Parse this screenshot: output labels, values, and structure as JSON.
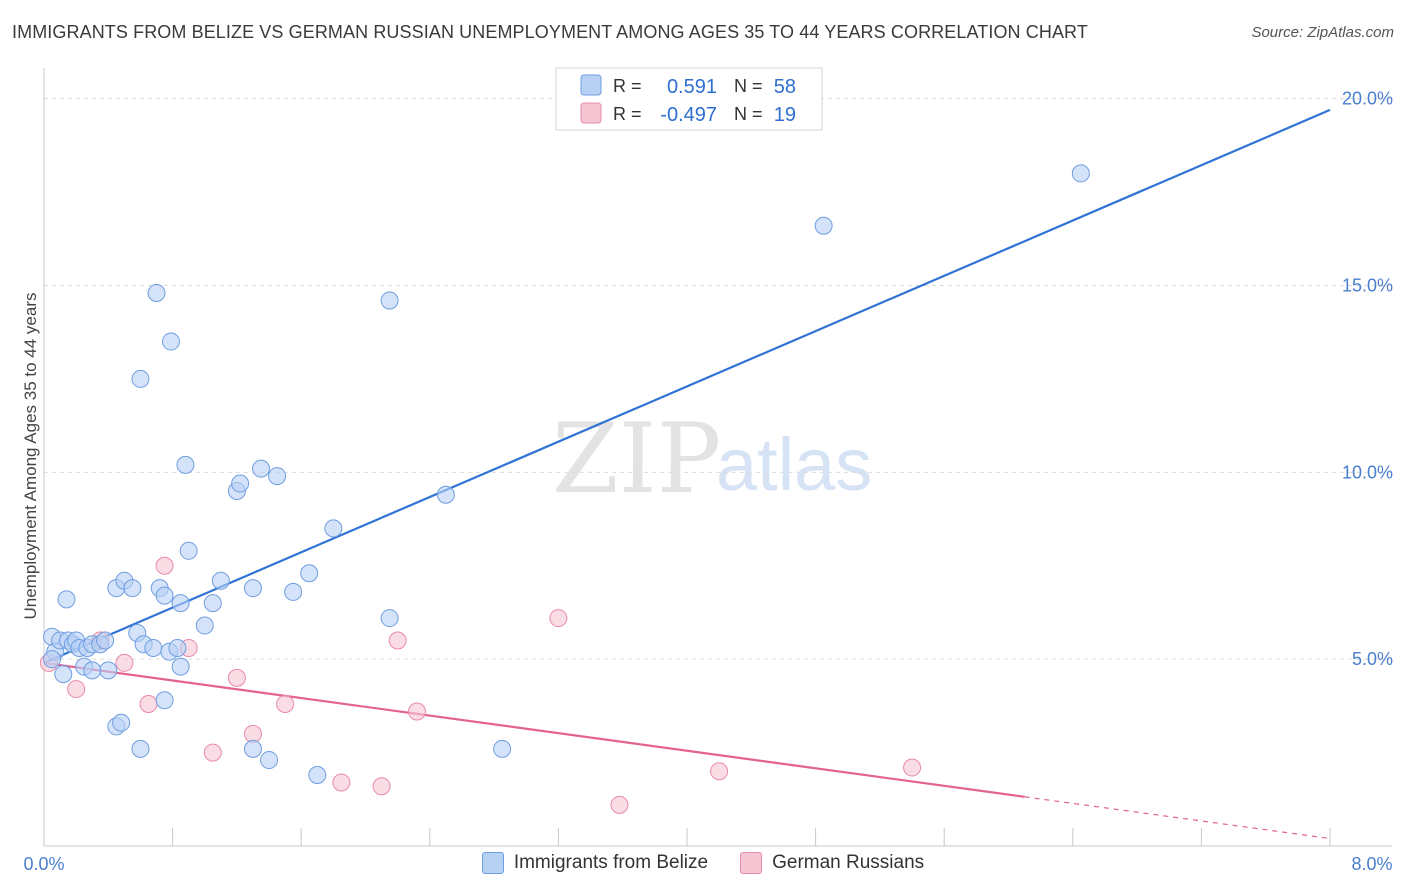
{
  "header": {
    "title": "IMMIGRANTS FROM BELIZE VS GERMAN RUSSIAN UNEMPLOYMENT AMONG AGES 35 TO 44 YEARS CORRELATION CHART",
    "source": "Source: ZipAtlas.com"
  },
  "watermark": {
    "zip": "ZIP",
    "atlas": "atlas"
  },
  "colors": {
    "blue_fill": "#b7d1f5",
    "blue_stroke": "#6f9ee0",
    "blue_line": "#2f73d4",
    "pink_fill": "#f6c5d4",
    "pink_stroke": "#e88aa8",
    "pink_line": "#e4628e",
    "tick": "#4a7fd0",
    "grid": "#dcdcdc"
  },
  "legend": {
    "r_label": "R =",
    "n_label": "N =",
    "entries": [
      {
        "r": "0.591",
        "n": "58"
      },
      {
        "r": "-0.497",
        "n": "19"
      }
    ]
  },
  "bottom_legend": {
    "items": [
      "Immigrants from Belize",
      "German Russians"
    ]
  },
  "chart_data": {
    "type": "scatter",
    "title": "IMMIGRANTS FROM BELIZE VS GERMAN RUSSIAN UNEMPLOYMENT AMONG AGES 35 TO 44 YEARS CORRELATION CHART",
    "xlabel": "",
    "ylabel": "Unemployment Among Ages 35 to 44 years",
    "xlim": [
      0,
      8
    ],
    "ylim": [
      0,
      20.5
    ],
    "x_tick_labels": [
      "0.0%",
      "8.0%"
    ],
    "y_ticks": [
      5,
      10,
      15,
      20
    ],
    "y_tick_labels": [
      "5.0%",
      "10.0%",
      "15.0%",
      "20.0%"
    ],
    "series": [
      {
        "name": "Immigrants from Belize",
        "r": 0.591,
        "n": 58,
        "trend": {
          "x": [
            0,
            8
          ],
          "y": [
            4.9,
            19.7
          ]
        },
        "points": [
          [
            0.05,
            5.6
          ],
          [
            0.07,
            5.2
          ],
          [
            0.05,
            5.0
          ],
          [
            0.1,
            5.5
          ],
          [
            0.15,
            5.5
          ],
          [
            0.12,
            4.6
          ],
          [
            0.18,
            5.4
          ],
          [
            0.2,
            5.5
          ],
          [
            0.22,
            5.3
          ],
          [
            0.25,
            4.8
          ],
          [
            0.27,
            5.3
          ],
          [
            0.3,
            5.4
          ],
          [
            0.35,
            5.4
          ],
          [
            0.38,
            5.5
          ],
          [
            0.14,
            6.6
          ],
          [
            0.45,
            6.9
          ],
          [
            0.5,
            7.1
          ],
          [
            0.55,
            6.9
          ],
          [
            0.58,
            5.7
          ],
          [
            0.62,
            5.4
          ],
          [
            0.68,
            5.3
          ],
          [
            0.72,
            6.9
          ],
          [
            0.75,
            6.7
          ],
          [
            0.78,
            5.2
          ],
          [
            0.83,
            5.3
          ],
          [
            0.85,
            6.5
          ],
          [
            0.88,
            10.2
          ],
          [
            0.9,
            7.9
          ],
          [
            1.0,
            5.9
          ],
          [
            1.05,
            6.5
          ],
          [
            1.1,
            7.1
          ],
          [
            1.2,
            9.5
          ],
          [
            1.22,
            9.7
          ],
          [
            1.3,
            6.9
          ],
          [
            1.35,
            10.1
          ],
          [
            1.45,
            9.9
          ],
          [
            1.55,
            6.8
          ],
          [
            1.65,
            7.3
          ],
          [
            1.8,
            8.5
          ],
          [
            2.15,
            14.6
          ],
          [
            2.15,
            6.1
          ],
          [
            2.5,
            9.4
          ],
          [
            2.85,
            2.6
          ],
          [
            0.79,
            13.5
          ],
          [
            0.7,
            14.8
          ],
          [
            0.6,
            12.5
          ],
          [
            0.45,
            3.2
          ],
          [
            0.48,
            3.3
          ],
          [
            0.6,
            2.6
          ],
          [
            0.75,
            3.9
          ],
          [
            0.85,
            4.8
          ],
          [
            1.3,
            2.6
          ],
          [
            1.4,
            2.3
          ],
          [
            1.7,
            1.9
          ],
          [
            0.4,
            4.7
          ],
          [
            0.3,
            4.7
          ],
          [
            4.85,
            16.6
          ],
          [
            6.45,
            18.0
          ]
        ]
      },
      {
        "name": "German Russians",
        "r": -0.497,
        "n": 19,
        "trend": {
          "x": [
            0,
            8
          ],
          "y": [
            4.9,
            0.2
          ],
          "solid_until_x": 6.1
        },
        "points": [
          [
            0.03,
            4.9
          ],
          [
            0.2,
            4.2
          ],
          [
            0.35,
            5.5
          ],
          [
            0.5,
            4.9
          ],
          [
            0.65,
            3.8
          ],
          [
            0.75,
            7.5
          ],
          [
            0.9,
            5.3
          ],
          [
            1.05,
            2.5
          ],
          [
            1.2,
            4.5
          ],
          [
            1.3,
            3.0
          ],
          [
            1.5,
            3.8
          ],
          [
            1.85,
            1.7
          ],
          [
            2.1,
            1.6
          ],
          [
            2.2,
            5.5
          ],
          [
            2.32,
            3.6
          ],
          [
            3.2,
            6.1
          ],
          [
            3.58,
            1.1
          ],
          [
            4.2,
            2.0
          ],
          [
            5.4,
            2.1
          ]
        ]
      }
    ]
  }
}
